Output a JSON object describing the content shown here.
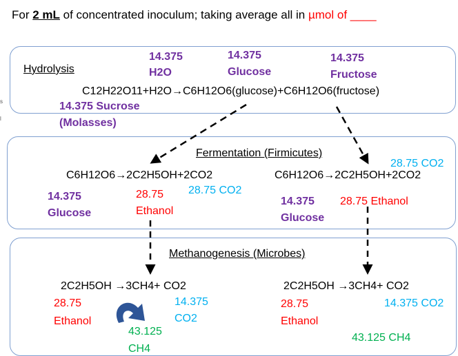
{
  "header": {
    "prefix": "For ",
    "volume": "2 mL",
    "middle": " of concentrated inoculum; taking average all in ",
    "unit": "µmol of ____"
  },
  "hydrolysis": {
    "title": "Hydrolysis",
    "equation": "C12H22O11+H2O→C6H12O6(glucose)+C6H12O6(fructose)",
    "h2o_value": "14.375",
    "h2o_label": "H2O",
    "glucose_value": "14.375",
    "glucose_label": "Glucose",
    "fructose_value": "14.375",
    "fructose_label": "Fructose",
    "sucrose_line": "14.375 Sucrose",
    "molasses": "(Molasses)"
  },
  "fermentation": {
    "title": "Fermentation (Firmicutes)",
    "left_equation": "C6H12O6→2C2H5OH+2CO2",
    "left_glucose_value": "14.375",
    "left_glucose_label": "Glucose",
    "left_ethanol_value": "28.75",
    "left_ethanol_label": "Ethanol",
    "left_co2": "28.75 CO2",
    "right_equation": "C6H12O6→2C2H5OH+2CO2",
    "right_co2": "28.75 CO2",
    "right_glucose_value": "14.375",
    "right_glucose_label": "Glucose",
    "right_ethanol": "28.75 Ethanol"
  },
  "methanogenesis": {
    "title": "Methanogenesis (Microbes)",
    "left_equation": "2C2H5OH →3CH4+ CO2",
    "left_ethanol_value": "28.75",
    "left_ethanol_label": "Ethanol",
    "left_co2_value": "14.375",
    "left_co2_label": "CO2",
    "left_ch4_value": "43.125",
    "left_ch4_label": "CH4",
    "right_equation": "2C2H5OH →3CH4+ CO2",
    "right_ethanol_value": "28.75",
    "right_ethanol_label": "Ethanol",
    "right_co2": "14.375 CO2",
    "right_ch4": "43.125  CH4"
  },
  "colors": {
    "purple": "#7030a0",
    "red": "#ff0000",
    "blue": "#00b0f0",
    "green": "#00b050",
    "box_border": "#7f9fd0",
    "curved_arrow": "#2e5597"
  }
}
